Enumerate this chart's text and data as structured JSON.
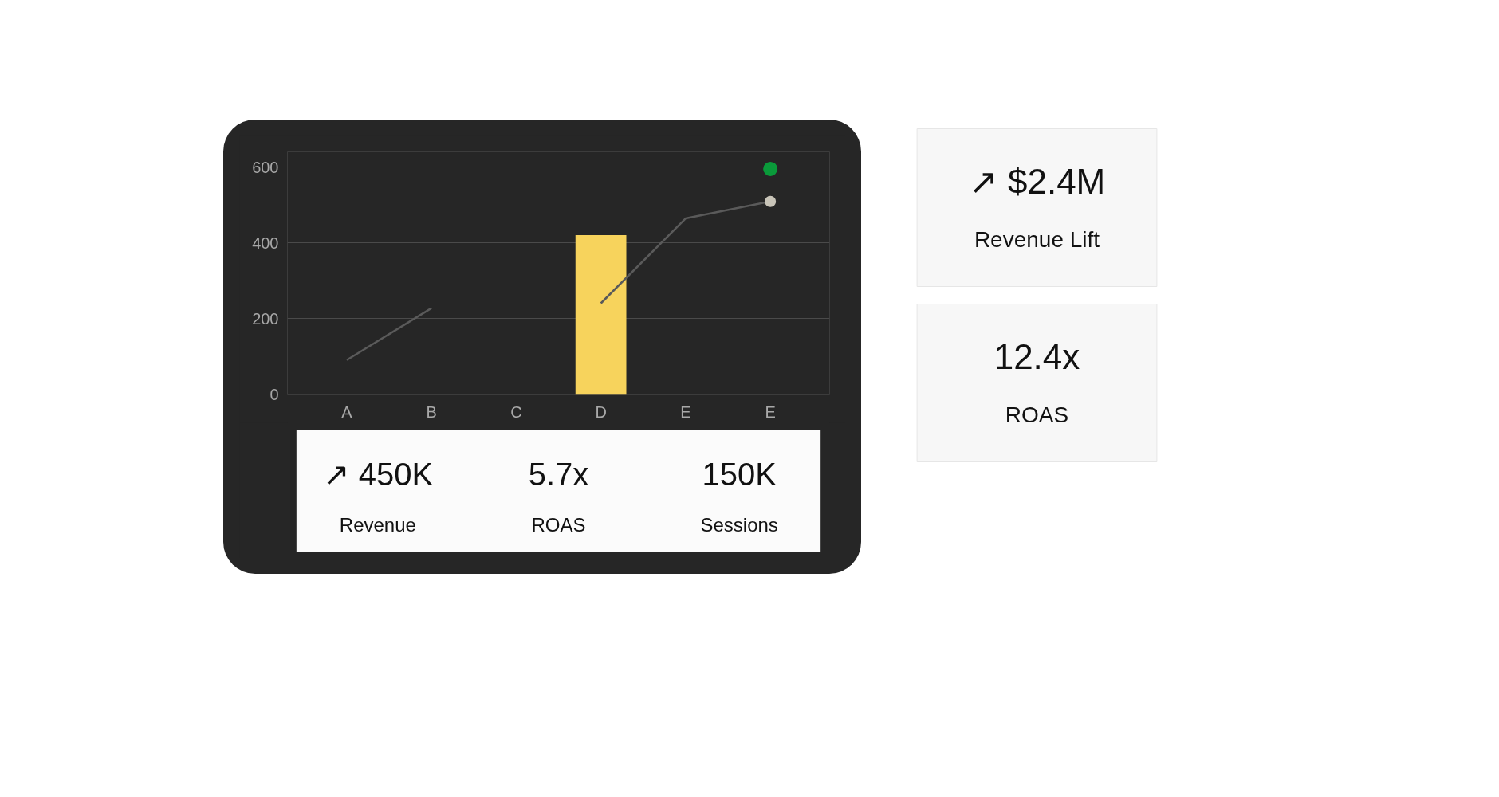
{
  "chart_data": [
    {
      "type": "bar",
      "categories": [
        "A",
        "B",
        "C",
        "D",
        "E",
        "E"
      ],
      "ylim": [
        0,
        640
      ],
      "yticks": [
        0,
        200,
        400,
        600
      ],
      "grid": "y",
      "series": [
        {
          "type": "bar",
          "color": "#f7d35c",
          "values": [
            null,
            null,
            null,
            420,
            null,
            null
          ]
        },
        {
          "type": "line",
          "color": "#5a5a5a",
          "marker": "none",
          "line_style": "solid",
          "values": [
            90,
            227,
            null,
            240,
            464,
            509
          ]
        },
        {
          "type": "scatter",
          "color": "#c8c4b8",
          "marker": "circle",
          "values": [
            null,
            null,
            null,
            null,
            null,
            509
          ]
        },
        {
          "type": "scatter",
          "color": "#0a9a3a",
          "marker": "circle",
          "values": [
            null,
            null,
            null,
            null,
            null,
            595
          ]
        }
      ]
    },
    {
      "type": "other",
      "annotations": [
        "↗ 450K",
        "Revenue",
        "5.7x",
        "ROAS",
        "150K",
        "Sessions"
      ]
    },
    {
      "type": "other",
      "annotations": [
        "↗ $2.4M",
        "Revenue Lift",
        "12.4x",
        "ROAS"
      ]
    }
  ]
}
